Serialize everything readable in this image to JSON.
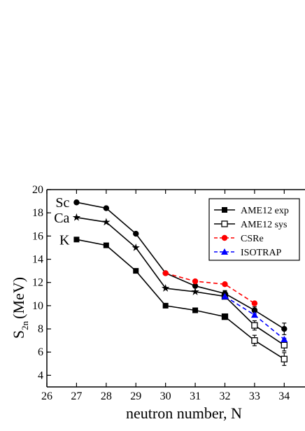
{
  "chart_data": {
    "type": "line",
    "title": "",
    "xlabel": "neutron number, N",
    "ylabel": "S",
    "ylabel_sub": "2n",
    "ylabel_unit": "(MeV)",
    "xlim": [
      26,
      34.7
    ],
    "ylim": [
      3,
      20
    ],
    "xticks": [
      "26",
      "27",
      "28",
      "29",
      "30",
      "31",
      "32",
      "33",
      "34"
    ],
    "yticks": [
      "4",
      "6",
      "8",
      "10",
      "12",
      "14",
      "16",
      "18",
      "20"
    ],
    "grid": false,
    "legend_position": "top-right",
    "element_labels": [
      {
        "text": "Sc",
        "x": 27,
        "y": 18.9
      },
      {
        "text": "Ca",
        "x": 27,
        "y": 17.6
      },
      {
        "text": "K",
        "x": 27,
        "y": 15.7
      }
    ],
    "series": [
      {
        "name": "AME12 exp",
        "element": "K",
        "style": "exp",
        "color": "#000000",
        "marker": "square",
        "x": [
          27,
          28,
          29,
          30,
          31,
          32
        ],
        "y": [
          15.7,
          15.2,
          13.0,
          10.0,
          9.6,
          9.05
        ],
        "err": [
          0,
          0,
          0,
          0,
          0,
          0
        ]
      },
      {
        "name": "AME12 sys",
        "element": "K",
        "style": "sys",
        "color": "#000000",
        "marker": "open-square",
        "x": [
          32,
          33,
          34
        ],
        "y": [
          9.05,
          7.0,
          5.4
        ],
        "err": [
          0,
          0.45,
          0.55
        ]
      },
      {
        "name": "AME12 exp",
        "element": "Ca",
        "style": "exp",
        "color": "#000000",
        "marker": "star",
        "x": [
          27,
          28,
          29,
          30,
          31,
          32
        ],
        "y": [
          17.6,
          17.2,
          15.0,
          11.5,
          11.2,
          10.8
        ],
        "err": [
          0,
          0,
          0,
          0,
          0,
          0
        ]
      },
      {
        "name": "AME12 sys",
        "element": "Ca",
        "style": "sys",
        "color": "#000000",
        "marker": "open-square",
        "x": [
          32,
          33,
          34
        ],
        "y": [
          10.8,
          8.3,
          6.6
        ],
        "err": [
          0,
          0.4,
          0.5
        ]
      },
      {
        "name": "AME12 exp",
        "element": "Sc",
        "style": "exp",
        "color": "#000000",
        "marker": "circle",
        "x": [
          27,
          28,
          29,
          30,
          31,
          32,
          33,
          34
        ],
        "y": [
          18.9,
          18.4,
          16.2,
          12.8,
          11.7,
          11.05,
          9.6,
          8.0
        ],
        "err": [
          0,
          0,
          0,
          0,
          0,
          0.25,
          0.3,
          0.5
        ]
      },
      {
        "name": "CSRe",
        "element": "Sc",
        "style": "csre",
        "color": "#ff0000",
        "marker": "circle",
        "x": [
          30,
          31,
          32,
          33
        ],
        "y": [
          12.8,
          12.1,
          11.85,
          10.2
        ],
        "err": [
          0,
          0,
          0,
          0.15
        ]
      },
      {
        "name": "ISOTRAP",
        "element": "Ca",
        "style": "isotrap",
        "color": "#0000ff",
        "marker": "triangle",
        "x": [
          32,
          33,
          34
        ],
        "y": [
          10.8,
          9.2,
          7.1
        ],
        "err": [
          0,
          0.1,
          0.1
        ]
      }
    ],
    "legend": [
      {
        "label": "AME12 exp",
        "color": "#000000",
        "marker": "square",
        "dash": false
      },
      {
        "label": "AME12 sys",
        "color": "#000000",
        "marker": "open-square",
        "dash": false
      },
      {
        "label": "CSRe",
        "color": "#ff0000",
        "marker": "circle",
        "dash": true
      },
      {
        "label": "ISOTRAP",
        "color": "#0000ff",
        "marker": "triangle",
        "dash": true
      }
    ]
  }
}
